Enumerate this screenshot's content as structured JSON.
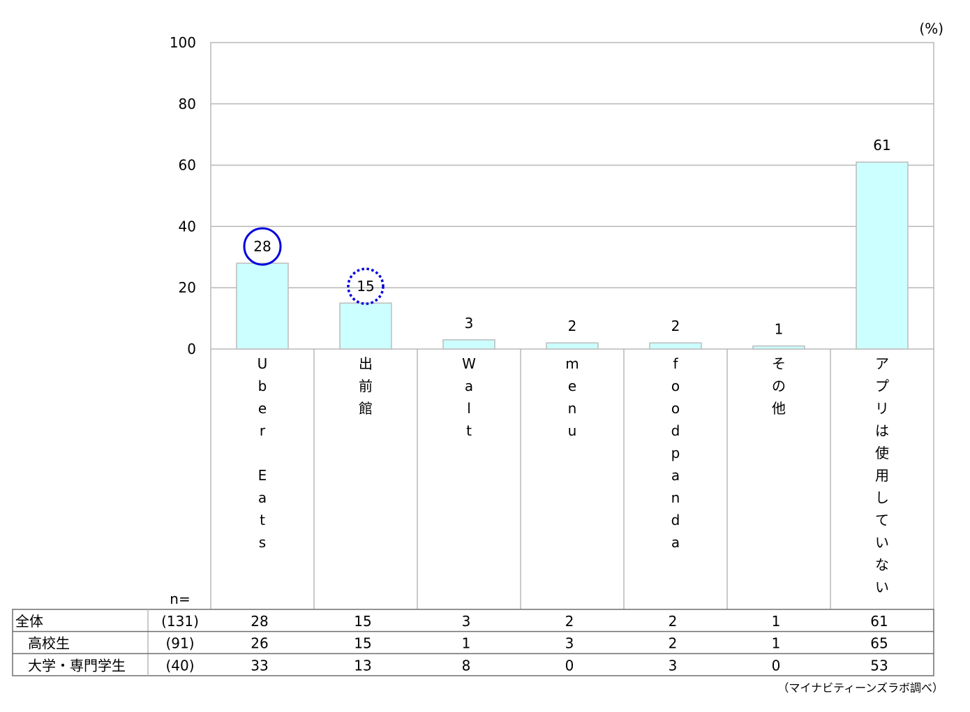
{
  "chart_data": {
    "type": "bar",
    "unit_label": "(%)",
    "categories": [
      "Uber Eats",
      "出前館",
      "Walt",
      "menu",
      "foodpanda",
      "その他",
      "アプリは使用していない"
    ],
    "values": [
      28,
      15,
      3,
      2,
      2,
      1,
      61
    ],
    "ylim": [
      0,
      100
    ],
    "yticks": [
      "0",
      "20",
      "40",
      "60",
      "80",
      "100"
    ],
    "grid": true,
    "bar_color": "#ccffff",
    "highlights": [
      {
        "category": "Uber Eats",
        "style": "solid-circle",
        "color": "#0000dd"
      },
      {
        "category": "出前館",
        "style": "dotted-circle",
        "color": "#0000dd"
      }
    ],
    "table": {
      "n_label": "n=",
      "rows": [
        {
          "label": "全体",
          "n": "(131)",
          "values": [
            "28",
            "15",
            "3",
            "2",
            "2",
            "1",
            "61"
          ]
        },
        {
          "label": "高校生",
          "n": "(91)",
          "values": [
            "26",
            "15",
            "1",
            "3",
            "2",
            "1",
            "65"
          ]
        },
        {
          "label": "大学・専門学生",
          "n": "(40)",
          "values": [
            "33",
            "13",
            "8",
            "0",
            "3",
            "0",
            "53"
          ]
        }
      ]
    },
    "source": "（マイナビティーンズラボ調べ）"
  }
}
